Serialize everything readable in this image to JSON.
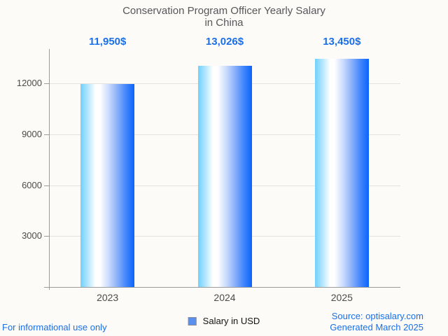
{
  "title_lines": [
    "Conservation Program Officer Yearly Salary",
    "in China"
  ],
  "chart_data": {
    "type": "bar",
    "title": "Conservation Program Officer Yearly Salary in China",
    "categories": [
      "2023",
      "2024",
      "2025"
    ],
    "series": [
      {
        "name": "Salary in USD",
        "values": [
          11950,
          13026,
          13450
        ]
      }
    ],
    "value_labels": [
      "11,950$",
      "13,026$",
      "13,450$"
    ],
    "xlabel": "",
    "ylabel": "",
    "yticks": [
      3000,
      6000,
      9000,
      12000
    ],
    "ylim": [
      0,
      14000
    ],
    "grid": true,
    "legend_position": "bottom",
    "bar_gradient": [
      "#6fd0fd",
      "#ffffff",
      "#0a64fb"
    ]
  },
  "legend": {
    "label": "Salary in USD",
    "marker_color": "#5b8fee"
  },
  "footer": {
    "disclaimer": "For informational use only",
    "source": "Source: optisalary.com",
    "generated": "Generated March 2025"
  },
  "colors": {
    "accent_blue": "#1a6fe8",
    "title_text": "#57575a",
    "axis_text": "#4b4b4b",
    "axis_line": "#9b9b9b",
    "gridline": "#e4e2df",
    "background": "#fcfbf8"
  }
}
